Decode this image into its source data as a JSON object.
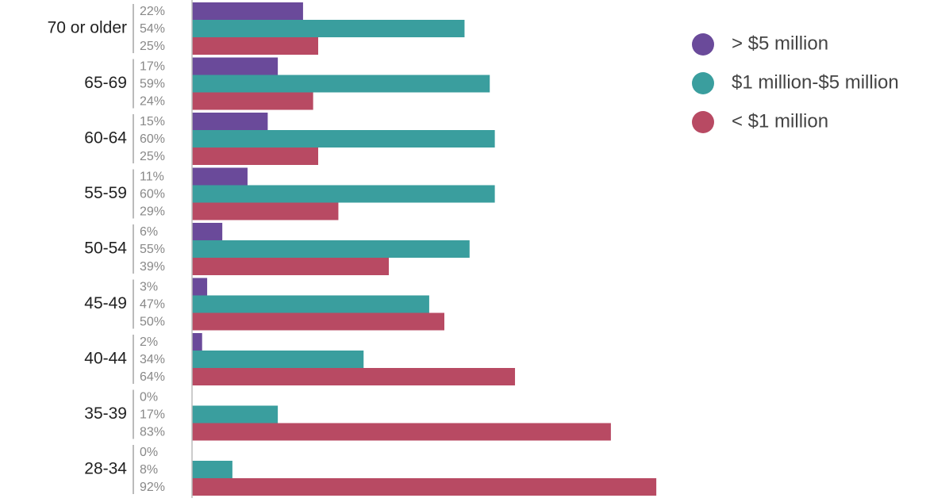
{
  "chart_data": {
    "type": "hbar",
    "categories": [
      "70 or older",
      "65-69",
      "60-64",
      "55-59",
      "50-54",
      "45-49",
      "40-44",
      "35-39",
      "28-34"
    ],
    "series": [
      {
        "name": "> $5 million",
        "color": "#6a4a9a",
        "values": [
          22,
          17,
          15,
          11,
          6,
          3,
          2,
          0,
          0
        ],
        "value_labels": [
          "22%",
          "17%",
          "15%",
          "11%",
          "6%",
          "3%",
          "2%",
          "0%",
          "0%"
        ]
      },
      {
        "name": "$1 million-$5 million",
        "color": "#3a9e9e",
        "values": [
          54,
          59,
          60,
          60,
          55,
          47,
          34,
          17,
          8
        ],
        "value_labels": [
          "54%",
          "59%",
          "60%",
          "60%",
          "55%",
          "47%",
          "34%",
          "17%",
          "8%"
        ]
      },
      {
        "name": "< $1 million",
        "color": "#b84a63",
        "values": [
          25,
          24,
          25,
          29,
          39,
          50,
          64,
          83,
          92
        ],
        "value_labels": [
          "25%",
          "24%",
          "25%",
          "29%",
          "39%",
          "50%",
          "64%",
          "83%",
          "92%"
        ]
      }
    ],
    "legend": "top-right"
  }
}
